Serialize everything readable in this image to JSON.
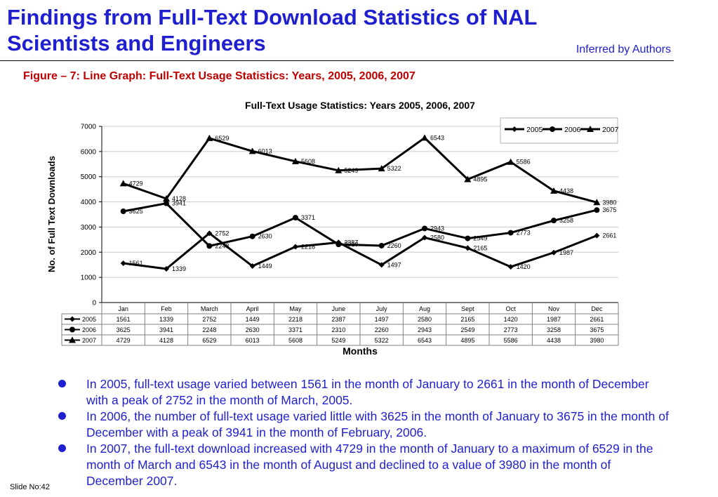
{
  "slide": {
    "title": "Findings from Full-Text Download Statistics of NAL Scientists and Engineers",
    "inferred": "Inferred by Authors",
    "figure_caption": "Figure – 7: Line Graph: Full-Text Usage Statistics: Years, 2005, 2006, 2007",
    "slide_number": "Slide No:42",
    "bullets": [
      "In 2005, full-text usage varied between 1561 in the month of January to 2661 in the month of December with a peak of 2752 in the month of March, 2005.",
      "In 2006, the number of full-text usage varied little with 3625 in the month of January to 3675 in the month of December with a peak of 3941 in the month of February, 2006.",
      "In 2007, the full-text download increased with 4729 in the month of January to a maximum of 6529 in the month of March and 6543 in the month of August and declined to a value of 3980 in the month of December 2007."
    ]
  },
  "chart_data": {
    "type": "line",
    "title": "Full-Text Usage Statistics: Years 2005, 2006, 2007",
    "xlabel": "Months",
    "ylabel": "No. of Full Text Downloads",
    "ylim": [
      0,
      7000
    ],
    "yticks": [
      0,
      1000,
      2000,
      3000,
      4000,
      5000,
      6000,
      7000
    ],
    "grid": true,
    "legend": "top-right",
    "categories": [
      "Jan",
      "Feb",
      "March",
      "April",
      "May",
      "June",
      "July",
      "Aug",
      "Sept",
      "Oct",
      "Nov",
      "Dec"
    ],
    "series": [
      {
        "name": "2005",
        "marker": "diamond",
        "values": [
          1561,
          1339,
          2752,
          1449,
          2218,
          2387,
          1497,
          2580,
          2165,
          1420,
          1987,
          2661
        ]
      },
      {
        "name": "2006",
        "marker": "circle",
        "values": [
          3625,
          3941,
          2248,
          2630,
          3371,
          2310,
          2260,
          2943,
          2549,
          2773,
          3258,
          3675
        ]
      },
      {
        "name": "2007",
        "marker": "triangle",
        "values": [
          4729,
          4128,
          6529,
          6013,
          5608,
          5249,
          5322,
          6543,
          4895,
          5586,
          4438,
          3980
        ]
      }
    ],
    "data_table": true
  }
}
